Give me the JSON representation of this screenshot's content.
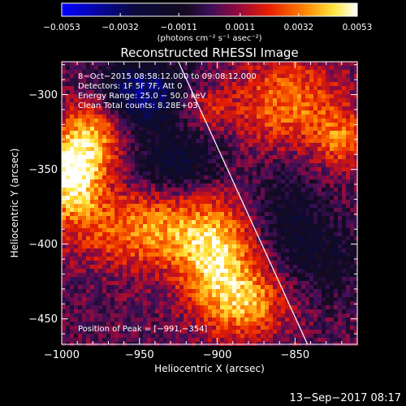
{
  "chart_data": {
    "type": "heatmap",
    "title": "Reconstructed RHESSI Image",
    "xlabel": "Heliocentric X (arcsec)",
    "ylabel": "Heliocentric Y (arcsec)",
    "xlim": [
      -1000,
      -810
    ],
    "ylim": [
      -467,
      -278
    ],
    "x_ticks": [
      -1000,
      -950,
      -900,
      -850
    ],
    "y_ticks": [
      -300,
      -350,
      -400,
      -450
    ],
    "x_tick_labels": [
      "−1000",
      "−950",
      "−900",
      "−850"
    ],
    "y_tick_labels": [
      "−300",
      "−350",
      "−400",
      "−450"
    ],
    "colorbar": {
      "range": [
        -0.0053,
        0.0053
      ],
      "ticks": [
        -0.0053,
        -0.0032,
        -0.0011,
        0.0011,
        0.0032,
        0.0053
      ],
      "tick_labels": [
        "−0.0053",
        "−0.0032",
        "−0.0011",
        "0.0011",
        "0.0032",
        "0.0053"
      ],
      "label": "(photons cm⁻² s⁻¹ asec⁻²)"
    },
    "annotations": [
      "8−Oct−2015 08:58:12.000 to 09:08:12.000",
      "Detectors: 1F 5F 7F, Att 0",
      "Energy Range: 25.0 − 50.0 keV",
      "Clean    Total counts: 8.28E+03"
    ],
    "peak_label": "Position of Peak = [−991,−354]",
    "peak": [
      -991,
      -354
    ],
    "limb_line": [
      [
        -925,
        -278
      ],
      [
        -842,
        -467
      ]
    ],
    "blobs": [
      {
        "x": -993,
        "y": -352,
        "amp": 1.0,
        "sx": 14,
        "sy": 22
      },
      {
        "x": -975,
        "y": -320,
        "amp": 0.55,
        "sx": 14,
        "sy": 18
      },
      {
        "x": -945,
        "y": -390,
        "amp": 0.6,
        "sx": 30,
        "sy": 18
      },
      {
        "x": -900,
        "y": -410,
        "amp": 0.75,
        "sx": 18,
        "sy": 25
      },
      {
        "x": -880,
        "y": -440,
        "amp": 0.55,
        "sx": 18,
        "sy": 16
      },
      {
        "x": -855,
        "y": -305,
        "amp": 0.55,
        "sx": 25,
        "sy": 22
      },
      {
        "x": -820,
        "y": -330,
        "amp": 0.45,
        "sx": 12,
        "sy": 14
      },
      {
        "x": -910,
        "y": -310,
        "amp": 0.35,
        "sx": 12,
        "sy": 10
      },
      {
        "x": -950,
        "y": -300,
        "amp": -0.8,
        "sx": 22,
        "sy": 16
      },
      {
        "x": -925,
        "y": -345,
        "amp": -0.45,
        "sx": 20,
        "sy": 15
      },
      {
        "x": -855,
        "y": -380,
        "amp": -0.35,
        "sx": 16,
        "sy": 22
      },
      {
        "x": -830,
        "y": -410,
        "amp": -0.3,
        "sx": 18,
        "sy": 18
      }
    ]
  },
  "footer_date": "13−Sep−2017 08:17"
}
